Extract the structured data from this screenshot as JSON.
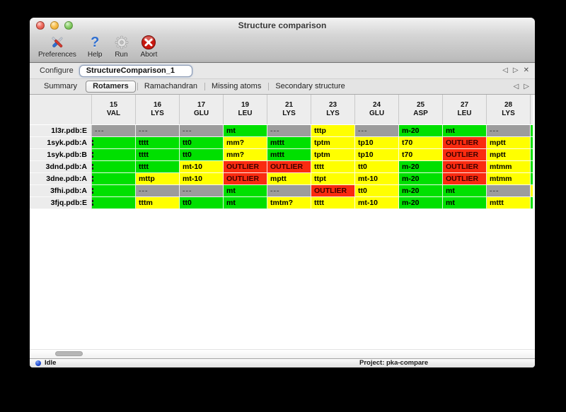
{
  "window": {
    "title": "Structure comparison"
  },
  "toolbar": {
    "items": [
      {
        "label": "Preferences",
        "icon": "tools-icon"
      },
      {
        "label": "Help",
        "icon": "help-icon",
        "glyph": "?"
      },
      {
        "label": "Run",
        "icon": "gear-icon"
      },
      {
        "label": "Abort",
        "icon": "abort-icon"
      }
    ]
  },
  "configure": {
    "label": "Configure",
    "value": "StructureComparison_1",
    "nav": {
      "prev": "◁",
      "next": "▷",
      "close": "✕"
    }
  },
  "tabs": {
    "items": [
      "Summary",
      "Rotamers",
      "Ramachandran",
      "Missing atoms",
      "Secondary structure"
    ],
    "selected": "Rotamers",
    "nav": {
      "prev": "◁",
      "next": "▷"
    }
  },
  "table": {
    "status_colors": {
      "green": "#00e000",
      "yellow": "#ffff00",
      "red": "#fa2b10",
      "gray": "#9c9c9c"
    },
    "columns": [
      {
        "num": "15",
        "res": "VAL"
      },
      {
        "num": "16",
        "res": "LYS"
      },
      {
        "num": "17",
        "res": "GLU"
      },
      {
        "num": "19",
        "res": "LEU"
      },
      {
        "num": "21",
        "res": "LYS"
      },
      {
        "num": "23",
        "res": "LYS"
      },
      {
        "num": "24",
        "res": "GLU"
      },
      {
        "num": "25",
        "res": "ASP"
      },
      {
        "num": "27",
        "res": "LEU"
      },
      {
        "num": "28",
        "res": "LYS"
      }
    ],
    "rows": [
      {
        "label": "1l3r.pdb:E",
        "sliver": "green",
        "cells": [
          {
            "text": "---",
            "status": "gray"
          },
          {
            "text": "---",
            "status": "gray"
          },
          {
            "text": "---",
            "status": "gray"
          },
          {
            "text": "mt",
            "status": "green"
          },
          {
            "text": "---",
            "status": "gray"
          },
          {
            "text": "tttp",
            "status": "yellow"
          },
          {
            "text": "---",
            "status": "gray"
          },
          {
            "text": "m-20",
            "status": "green"
          },
          {
            "text": "mt",
            "status": "green"
          },
          {
            "text": "---",
            "status": "gray"
          }
        ]
      },
      {
        "label": "1syk.pdb:A",
        "sliver": "green",
        "cells": [
          {
            "text": "",
            "status": "green",
            "clipped": true
          },
          {
            "text": "tttt",
            "status": "green"
          },
          {
            "text": "tt0",
            "status": "green"
          },
          {
            "text": "mm?",
            "status": "yellow"
          },
          {
            "text": "mttt",
            "status": "green"
          },
          {
            "text": "tptm",
            "status": "yellow"
          },
          {
            "text": "tp10",
            "status": "yellow"
          },
          {
            "text": "t70",
            "status": "yellow"
          },
          {
            "text": "OUTLIER",
            "status": "red"
          },
          {
            "text": "mptt",
            "status": "yellow"
          }
        ]
      },
      {
        "label": "1syk.pdb:B",
        "sliver": "green",
        "cells": [
          {
            "text": "",
            "status": "green",
            "clipped": true
          },
          {
            "text": "tttt",
            "status": "green"
          },
          {
            "text": "tt0",
            "status": "green"
          },
          {
            "text": "mm?",
            "status": "yellow"
          },
          {
            "text": "mttt",
            "status": "green"
          },
          {
            "text": "tptm",
            "status": "yellow"
          },
          {
            "text": "tp10",
            "status": "yellow"
          },
          {
            "text": "t70",
            "status": "yellow"
          },
          {
            "text": "OUTLIER",
            "status": "red"
          },
          {
            "text": "mptt",
            "status": "yellow"
          }
        ]
      },
      {
        "label": "3dnd.pdb:A",
        "sliver": "green",
        "cells": [
          {
            "text": "",
            "status": "green",
            "clipped": true
          },
          {
            "text": "tttt",
            "status": "green"
          },
          {
            "text": "mt-10",
            "status": "yellow"
          },
          {
            "text": "OUTLIER",
            "status": "red"
          },
          {
            "text": "OUTLIER",
            "status": "red"
          },
          {
            "text": "tttt",
            "status": "yellow"
          },
          {
            "text": "tt0",
            "status": "yellow"
          },
          {
            "text": "m-20",
            "status": "green"
          },
          {
            "text": "OUTLIER",
            "status": "red"
          },
          {
            "text": "mtmm",
            "status": "yellow"
          }
        ]
      },
      {
        "label": "3dne.pdb:A",
        "sliver": "green",
        "cells": [
          {
            "text": "",
            "status": "green",
            "clipped": true
          },
          {
            "text": "mttp",
            "status": "yellow"
          },
          {
            "text": "mt-10",
            "status": "yellow"
          },
          {
            "text": "OUTLIER",
            "status": "red"
          },
          {
            "text": "mptt",
            "status": "yellow"
          },
          {
            "text": "ttpt",
            "status": "yellow"
          },
          {
            "text": "mt-10",
            "status": "yellow"
          },
          {
            "text": "m-20",
            "status": "green"
          },
          {
            "text": "OUTLIER",
            "status": "red"
          },
          {
            "text": "mtmm",
            "status": "yellow"
          }
        ]
      },
      {
        "label": "3fhi.pdb:A",
        "sliver": "yellow",
        "cells": [
          {
            "text": "",
            "status": "green",
            "clipped": true
          },
          {
            "text": "---",
            "status": "gray"
          },
          {
            "text": "---",
            "status": "gray"
          },
          {
            "text": "mt",
            "status": "green"
          },
          {
            "text": "---",
            "status": "gray"
          },
          {
            "text": "OUTLIER",
            "status": "red"
          },
          {
            "text": "tt0",
            "status": "yellow"
          },
          {
            "text": "m-20",
            "status": "green"
          },
          {
            "text": "mt",
            "status": "green"
          },
          {
            "text": "---",
            "status": "gray"
          }
        ]
      },
      {
        "label": "3fjq.pdb:E",
        "sliver": "green",
        "cells": [
          {
            "text": "",
            "status": "green",
            "clipped": true
          },
          {
            "text": "tttm",
            "status": "yellow"
          },
          {
            "text": "tt0",
            "status": "green"
          },
          {
            "text": "mt",
            "status": "green"
          },
          {
            "text": "tmtm?",
            "status": "yellow"
          },
          {
            "text": "tttt",
            "status": "yellow"
          },
          {
            "text": "mt-10",
            "status": "yellow"
          },
          {
            "text": "m-20",
            "status": "green"
          },
          {
            "text": "mt",
            "status": "green"
          },
          {
            "text": "mttt",
            "status": "yellow"
          }
        ]
      }
    ]
  },
  "status_bar": {
    "state": "Idle",
    "project": "Project: pka-compare"
  }
}
